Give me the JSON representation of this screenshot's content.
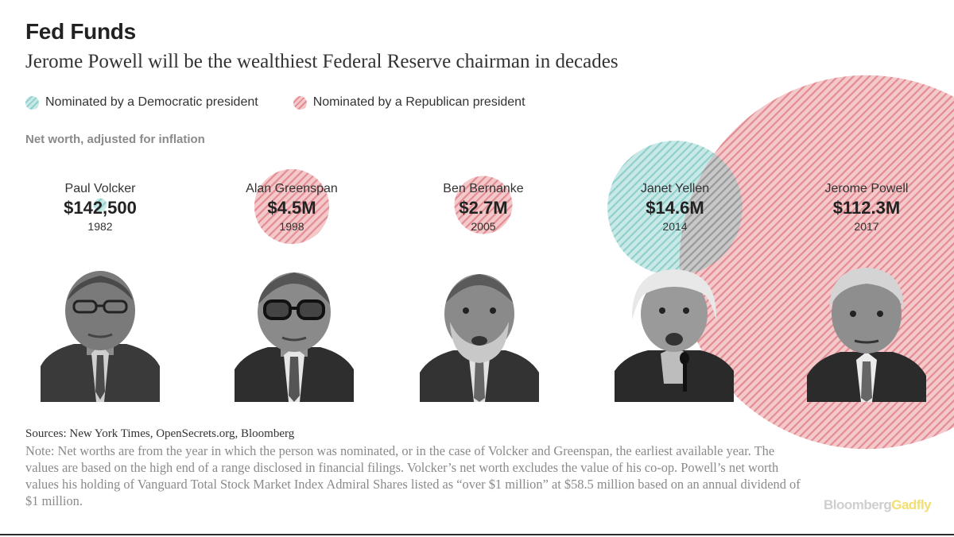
{
  "header": {
    "kicker": "Fed Funds",
    "title": "Jerome Powell will be the wealthiest Federal Reserve chairman in decades"
  },
  "legend": [
    {
      "label": "Nominated by a Democratic president",
      "party": "democratic"
    },
    {
      "label": "Nominated by a Republican president",
      "party": "republican"
    }
  ],
  "colors": {
    "democratic": "#8fcfcc",
    "democratic_light": "#c9e9e7",
    "republican": "#e38d92",
    "republican_light": "#f4c9cc",
    "overlap": "#9a9a9a"
  },
  "chart_data": {
    "type": "bubble",
    "title": "Net worth, adjusted for inflation",
    "value_unit": "USD millions (inflation-adjusted)",
    "points": [
      {
        "name": "Paul Volcker",
        "value": 0.1425,
        "label": "$142,500",
        "year": "1982",
        "party": "democratic"
      },
      {
        "name": "Alan Greenspan",
        "value": 4.5,
        "label": "$4.5M",
        "year": "1998",
        "party": "republican"
      },
      {
        "name": "Ben Bernanke",
        "value": 2.7,
        "label": "$2.7M",
        "year": "2005",
        "party": "republican"
      },
      {
        "name": "Janet Yellen",
        "value": 14.6,
        "label": "$14.6M",
        "year": "2014",
        "party": "democratic"
      },
      {
        "name": "Jerome Powell",
        "value": 112.3,
        "label": "$112.3M",
        "year": "2017",
        "party": "republican"
      }
    ]
  },
  "footer": {
    "sources": "Sources: New York Times, OpenSecrets.org, Bloomberg",
    "note": "Note: Net worths are from the year in which the person was nominated, or in the case of Volcker and Greenspan, the earliest available year. The values are based on the high end of a range disclosed in financial filings. Volcker’s net worth excludes the value of his co-op. Powell’s net worth values his holding of Vanguard Total Stock Market Index Admiral Shares listed as “over $1 million” at $58.5 million based on an annual dividend of $1 million.",
    "brand_part1": "Bloomberg",
    "brand_part2": "Gadfly"
  }
}
